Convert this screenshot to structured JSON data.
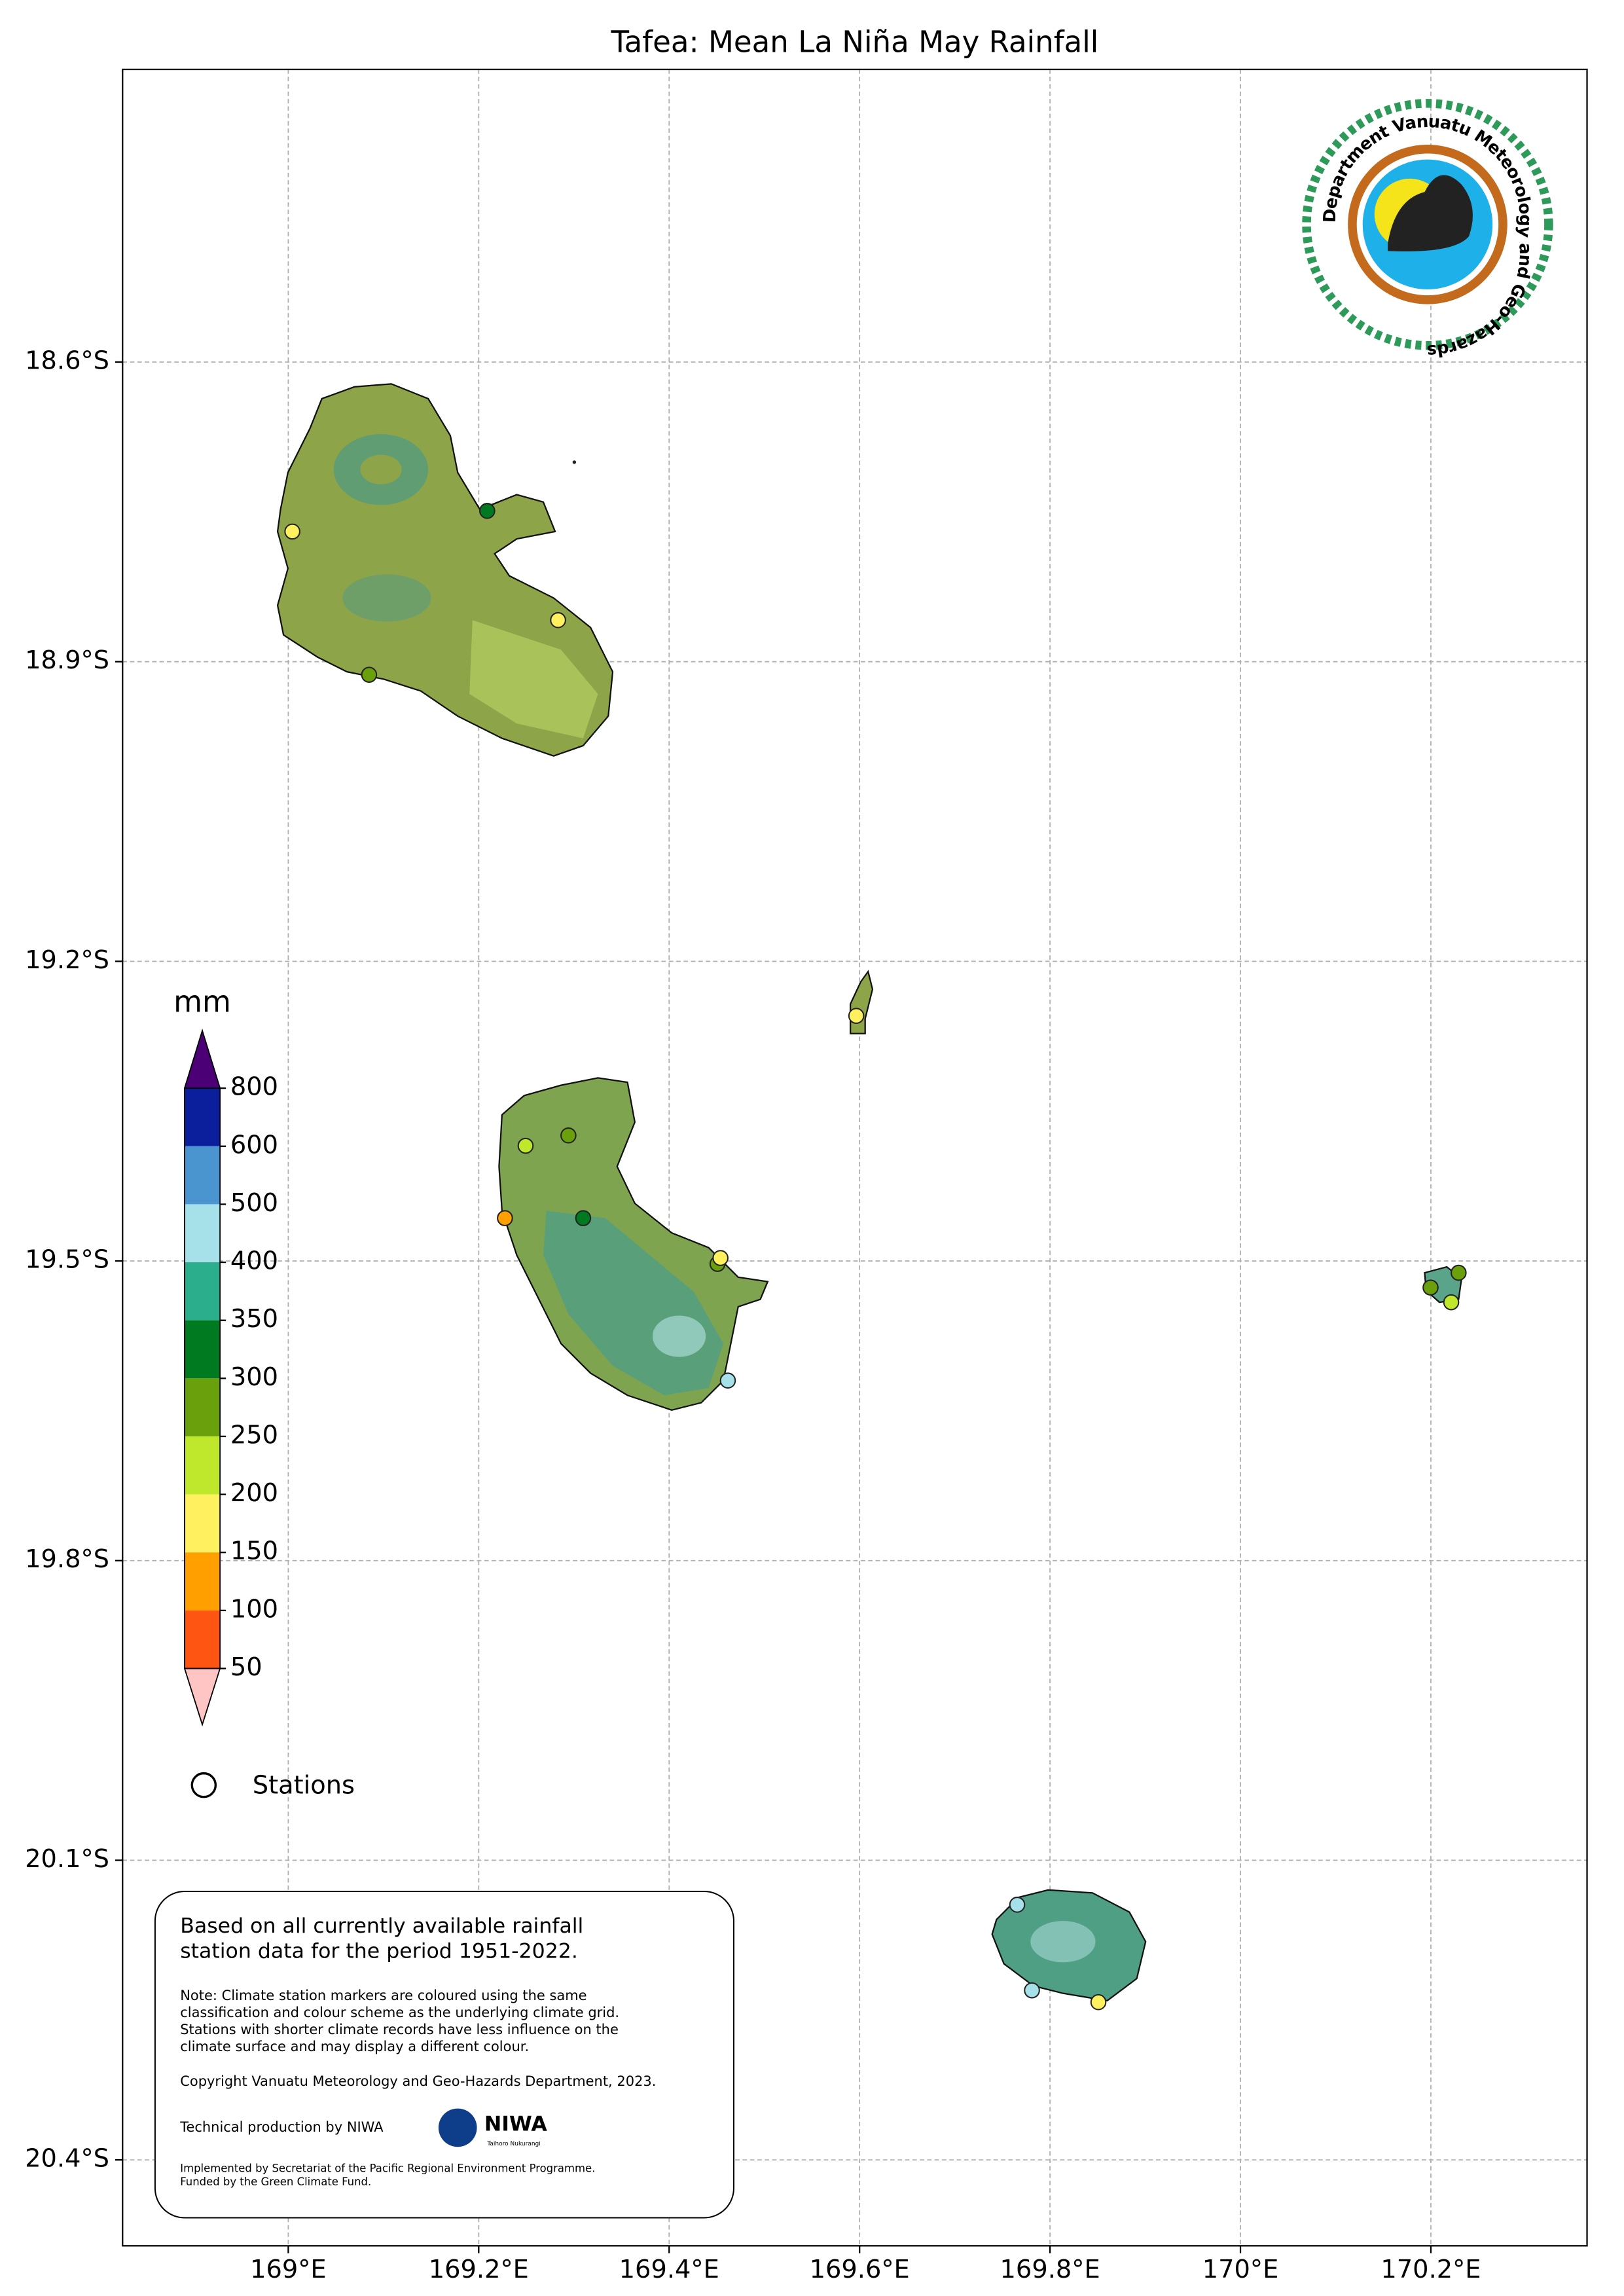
{
  "chart_data": {
    "type": "map",
    "title": "Tafea: Mean La Niña May Rainfall",
    "xlim": [
      168.826,
      170.364
    ],
    "ylim": [
      -20.486,
      -18.307
    ],
    "xticks": [
      {
        "value": 169.0,
        "label": "169°E"
      },
      {
        "value": 169.2,
        "label": "169.2°E"
      },
      {
        "value": 169.4,
        "label": "169.4°E"
      },
      {
        "value": 169.6,
        "label": "169.6°E"
      },
      {
        "value": 169.8,
        "label": "169.8°E"
      },
      {
        "value": 170.0,
        "label": "170°E"
      },
      {
        "value": 170.2,
        "label": "170.2°E"
      }
    ],
    "yticks": [
      {
        "value": -18.6,
        "label": "18.6°S"
      },
      {
        "value": -18.9,
        "label": "18.9°S"
      },
      {
        "value": -19.2,
        "label": "19.2°S"
      },
      {
        "value": -19.5,
        "label": "19.5°S"
      },
      {
        "value": -19.8,
        "label": "19.8°S"
      },
      {
        "value": -20.1,
        "label": "20.1°S"
      },
      {
        "value": -20.4,
        "label": "20.4°S"
      }
    ],
    "grid": true,
    "colorbar": {
      "label": "mm",
      "ticks": [
        800,
        600,
        500,
        400,
        350,
        300,
        250,
        200,
        150,
        100,
        50
      ],
      "colors": [
        "#0b1f9c",
        "#4a95d0",
        "#a6e0e8",
        "#2aae8c",
        "#007a20",
        "#6aa00c",
        "#bfe82c",
        "#fff060",
        "#ffa000",
        "#ff5512"
      ],
      "over_color": "#4b0075",
      "under_color": "#ffc4c4"
    },
    "legend": {
      "stations": "Stations"
    },
    "note_box": {
      "heading": [
        "Based on all currently available rainfall",
        "station data for the period 1951-2022."
      ],
      "note": [
        "Note: Climate station markers are coloured using the same",
        "classification and colour scheme as the underlying climate grid.",
        "Stations with shorter climate records have less influence on the",
        "climate surface and may display a different colour."
      ],
      "copyright": "Copyright Vanuatu Meteorology and Geo-Hazards Department, 2023.",
      "production": "Technical production by NIWA",
      "niwa": "NIWA",
      "niwa_sub": "Taihoro Nukurangi",
      "funding": [
        "Implemented by Secretariat of the Pacific Regional Environment Programme.",
        "Funded by the Green Climate Fund."
      ]
    },
    "logo_text": "Department Vanuatu Meteorology and Geo-Hazards"
  }
}
